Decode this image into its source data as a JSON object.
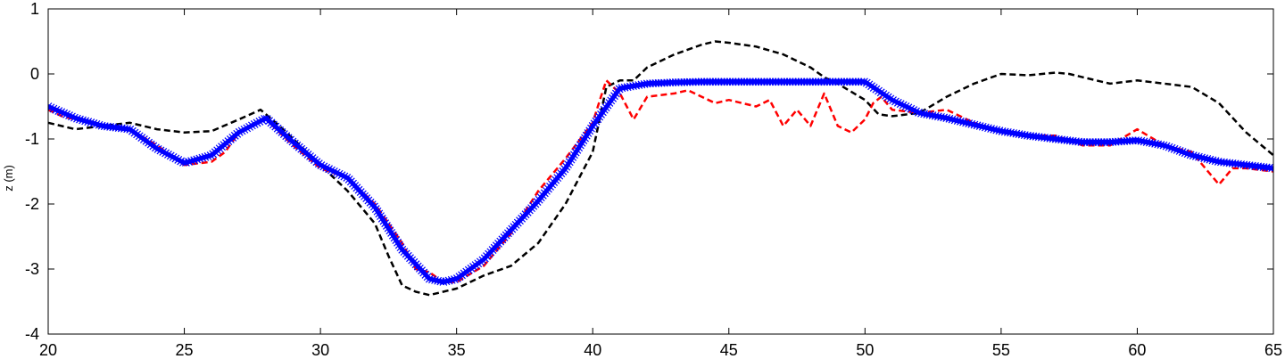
{
  "chart_data": {
    "type": "line",
    "title": "",
    "xlabel": "",
    "ylabel": "z (m)",
    "xlim": [
      20,
      65
    ],
    "ylim": [
      -4,
      1
    ],
    "xticks": [
      20,
      25,
      30,
      35,
      40,
      45,
      50,
      55,
      60,
      65
    ],
    "yticks": [
      -4,
      -3,
      -2,
      -1,
      0,
      1
    ],
    "grid": false,
    "legend": "none",
    "series": [
      {
        "color": "#000000",
        "style": "dashed",
        "x": [
          20,
          21,
          22,
          23,
          24,
          25,
          26,
          27,
          27.8,
          28.5,
          29,
          30,
          31,
          32,
          32.5,
          33,
          33.5,
          34,
          35,
          36,
          37,
          38,
          39,
          40,
          40.5,
          41,
          41.5,
          42,
          43,
          44,
          44.5,
          45,
          46,
          47,
          48,
          48.5,
          49,
          50,
          50.5,
          51,
          52,
          53,
          54,
          55,
          56,
          57,
          57.5,
          58,
          59,
          60,
          61,
          62,
          63,
          64,
          65
        ],
        "y": [
          -0.75,
          -0.85,
          -0.8,
          -0.75,
          -0.85,
          -0.9,
          -0.88,
          -0.7,
          -0.55,
          -0.8,
          -1.0,
          -1.4,
          -1.8,
          -2.3,
          -2.8,
          -3.25,
          -3.35,
          -3.4,
          -3.3,
          -3.1,
          -2.95,
          -2.6,
          -2.0,
          -1.2,
          -0.2,
          -0.1,
          -0.1,
          0.1,
          0.3,
          0.45,
          0.5,
          0.48,
          0.42,
          0.3,
          0.1,
          -0.05,
          -0.15,
          -0.4,
          -0.62,
          -0.65,
          -0.6,
          -0.35,
          -0.15,
          0.0,
          -0.02,
          0.02,
          0.0,
          -0.05,
          -0.15,
          -0.1,
          -0.15,
          -0.2,
          -0.45,
          -0.9,
          -1.25
        ]
      },
      {
        "color": "#ff0000",
        "style": "dashed",
        "x": [
          20,
          20.5,
          21,
          22,
          23,
          24,
          25,
          26,
          26.5,
          27,
          27.5,
          28,
          29,
          30,
          31,
          32,
          33,
          33.5,
          34,
          34.5,
          35,
          36,
          37,
          38,
          39,
          40,
          40.3,
          40.5,
          41,
          41.5,
          42,
          43,
          43.5,
          44,
          44.5,
          45,
          46,
          46.5,
          47,
          47.5,
          48,
          48.5,
          49,
          49.5,
          50,
          50.3,
          50.6,
          51,
          52,
          53,
          54,
          55,
          56,
          57,
          58,
          59,
          60,
          61,
          62,
          62.5,
          63,
          63.5,
          64,
          65
        ],
        "y": [
          -0.55,
          -0.65,
          -0.7,
          -0.8,
          -0.85,
          -1.1,
          -1.4,
          -1.35,
          -1.2,
          -0.9,
          -0.8,
          -0.7,
          -1.1,
          -1.45,
          -1.6,
          -2.0,
          -2.6,
          -3.0,
          -3.05,
          -3.2,
          -3.2,
          -2.95,
          -2.45,
          -1.8,
          -1.3,
          -0.75,
          -0.35,
          -0.1,
          -0.3,
          -0.7,
          -0.35,
          -0.3,
          -0.25,
          -0.35,
          -0.45,
          -0.4,
          -0.5,
          -0.4,
          -0.8,
          -0.55,
          -0.8,
          -0.3,
          -0.8,
          -0.9,
          -0.7,
          -0.45,
          -0.35,
          -0.55,
          -0.6,
          -0.55,
          -0.75,
          -0.9,
          -0.95,
          -0.95,
          -1.1,
          -1.1,
          -0.85,
          -1.1,
          -1.2,
          -1.45,
          -1.7,
          -1.45,
          -1.45,
          -1.5
        ]
      },
      {
        "color": "#0000ff",
        "style": "x-marker-line",
        "x": [
          20,
          21,
          22,
          23,
          24,
          25,
          26,
          27,
          28,
          29,
          30,
          31,
          32,
          33,
          34,
          34.5,
          35,
          36,
          37,
          38,
          39,
          40,
          41,
          42,
          43,
          44,
          45,
          46,
          47,
          48,
          49,
          50,
          51,
          52,
          53,
          54,
          55,
          56,
          57,
          58,
          59,
          60,
          61,
          62,
          63,
          64,
          65
        ],
        "y": [
          -0.5,
          -0.68,
          -0.8,
          -0.85,
          -1.15,
          -1.37,
          -1.25,
          -0.9,
          -0.68,
          -1.05,
          -1.4,
          -1.6,
          -2.05,
          -2.7,
          -3.15,
          -3.2,
          -3.15,
          -2.85,
          -2.4,
          -1.95,
          -1.45,
          -0.8,
          -0.22,
          -0.15,
          -0.13,
          -0.12,
          -0.12,
          -0.12,
          -0.12,
          -0.12,
          -0.12,
          -0.12,
          -0.4,
          -0.6,
          -0.68,
          -0.78,
          -0.88,
          -0.95,
          -1.0,
          -1.05,
          -1.05,
          -1.02,
          -1.1,
          -1.25,
          -1.35,
          -1.4,
          -1.45
        ]
      }
    ]
  }
}
